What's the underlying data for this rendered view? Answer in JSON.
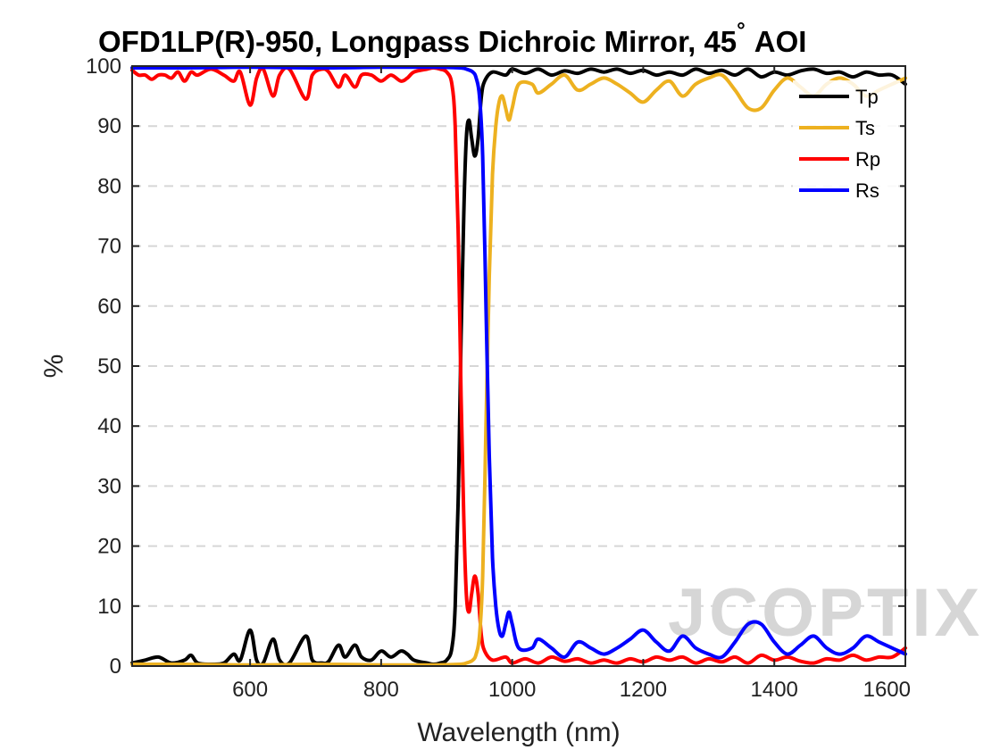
{
  "chart_data": {
    "type": "line",
    "title": "OFD1LP(R)-950, Longpass Dichroic Mirror, 45",
    "title_degree": "°",
    "title_suffix": "AOI",
    "xlabel": "Wavelength (nm)",
    "ylabel": "%",
    "xlim": [
      420,
      1600
    ],
    "ylim": [
      0,
      100
    ],
    "xticks": [
      600,
      800,
      1000,
      1200,
      1400,
      1600
    ],
    "yticks": [
      0,
      10,
      20,
      30,
      40,
      50,
      60,
      70,
      80,
      90,
      100
    ],
    "grid": "horizontal dashed",
    "legend_position": "top-right",
    "watermark": "JCOPTIX",
    "series": [
      {
        "name": "Tp",
        "color": "#000000",
        "points": [
          [
            420,
            0.5
          ],
          [
            440,
            1
          ],
          [
            460,
            1.5
          ],
          [
            480,
            0.5
          ],
          [
            500,
            1
          ],
          [
            510,
            1.8
          ],
          [
            520,
            0.5
          ],
          [
            540,
            0.3
          ],
          [
            560,
            0.5
          ],
          [
            575,
            2
          ],
          [
            585,
            1
          ],
          [
            600,
            6
          ],
          [
            610,
            1
          ],
          [
            620,
            0.5
          ],
          [
            635,
            4.5
          ],
          [
            645,
            1
          ],
          [
            660,
            0.5
          ],
          [
            685,
            5
          ],
          [
            695,
            1
          ],
          [
            710,
            0.5
          ],
          [
            720,
            0.8
          ],
          [
            735,
            3.5
          ],
          [
            745,
            1.5
          ],
          [
            760,
            3.5
          ],
          [
            770,
            1.5
          ],
          [
            785,
            1
          ],
          [
            800,
            2.5
          ],
          [
            815,
            1.5
          ],
          [
            830,
            2.5
          ],
          [
            840,
            2
          ],
          [
            850,
            1
          ],
          [
            870,
            0.5
          ],
          [
            880,
            0.3
          ],
          [
            890,
            0.5
          ],
          [
            900,
            1
          ],
          [
            908,
            3
          ],
          [
            913,
            10
          ],
          [
            918,
            30
          ],
          [
            922,
            55
          ],
          [
            926,
            75
          ],
          [
            930,
            88
          ],
          [
            934,
            91
          ],
          [
            938,
            88
          ],
          [
            943,
            85
          ],
          [
            948,
            88
          ],
          [
            953,
            95
          ],
          [
            958,
            97.5
          ],
          [
            970,
            99
          ],
          [
            990,
            98.5
          ],
          [
            1000,
            99.5
          ],
          [
            1020,
            98.8
          ],
          [
            1040,
            99.5
          ],
          [
            1060,
            98.5
          ],
          [
            1080,
            99.2
          ],
          [
            1100,
            98.8
          ],
          [
            1120,
            99.5
          ],
          [
            1140,
            99
          ],
          [
            1160,
            99.5
          ],
          [
            1180,
            98.8
          ],
          [
            1200,
            99.3
          ],
          [
            1220,
            98.5
          ],
          [
            1240,
            99
          ],
          [
            1260,
            98.5
          ],
          [
            1280,
            99.5
          ],
          [
            1300,
            98.8
          ],
          [
            1320,
            99.3
          ],
          [
            1340,
            98.5
          ],
          [
            1360,
            99.5
          ],
          [
            1380,
            98.2
          ],
          [
            1400,
            99
          ],
          [
            1420,
            98.5
          ],
          [
            1440,
            99.2
          ],
          [
            1460,
            99.5
          ],
          [
            1480,
            98.8
          ],
          [
            1500,
            99
          ],
          [
            1520,
            98.2
          ],
          [
            1540,
            99
          ],
          [
            1560,
            98.5
          ],
          [
            1580,
            98.5
          ],
          [
            1600,
            97
          ]
        ]
      },
      {
        "name": "Ts",
        "color": "#EDB120",
        "points": [
          [
            420,
            0.3
          ],
          [
            500,
            0.3
          ],
          [
            600,
            0.2
          ],
          [
            700,
            0.3
          ],
          [
            800,
            0.2
          ],
          [
            880,
            0.2
          ],
          [
            920,
            0.3
          ],
          [
            930,
            0.5
          ],
          [
            940,
            1
          ],
          [
            945,
            2
          ],
          [
            950,
            5
          ],
          [
            955,
            15
          ],
          [
            960,
            40
          ],
          [
            965,
            65
          ],
          [
            970,
            82
          ],
          [
            975,
            90
          ],
          [
            980,
            94
          ],
          [
            985,
            95
          ],
          [
            990,
            93
          ],
          [
            995,
            91
          ],
          [
            1000,
            93
          ],
          [
            1010,
            97
          ],
          [
            1030,
            97
          ],
          [
            1040,
            95.5
          ],
          [
            1060,
            97
          ],
          [
            1080,
            98.5
          ],
          [
            1100,
            96
          ],
          [
            1120,
            97
          ],
          [
            1140,
            98
          ],
          [
            1160,
            97
          ],
          [
            1180,
            95.5
          ],
          [
            1200,
            94
          ],
          [
            1220,
            96
          ],
          [
            1240,
            97.5
          ],
          [
            1260,
            95
          ],
          [
            1280,
            97
          ],
          [
            1300,
            98
          ],
          [
            1320,
            98.5
          ],
          [
            1340,
            96
          ],
          [
            1360,
            93
          ],
          [
            1380,
            93
          ],
          [
            1400,
            96
          ],
          [
            1420,
            98
          ],
          [
            1440,
            96.5
          ],
          [
            1460,
            95
          ],
          [
            1480,
            97
          ],
          [
            1500,
            98
          ],
          [
            1520,
            97
          ],
          [
            1540,
            95
          ],
          [
            1560,
            96
          ],
          [
            1580,
            97
          ],
          [
            1600,
            98
          ]
        ]
      },
      {
        "name": "Rp",
        "color": "#FF0000",
        "points": [
          [
            420,
            99.3
          ],
          [
            430,
            98.5
          ],
          [
            440,
            98.5
          ],
          [
            450,
            97.8
          ],
          [
            460,
            98.5
          ],
          [
            470,
            98.5
          ],
          [
            480,
            98
          ],
          [
            490,
            99
          ],
          [
            500,
            97.5
          ],
          [
            510,
            99
          ],
          [
            520,
            98.5
          ],
          [
            540,
            99.5
          ],
          [
            560,
            98.5
          ],
          [
            575,
            97.5
          ],
          [
            585,
            99
          ],
          [
            600,
            93.5
          ],
          [
            610,
            98
          ],
          [
            620,
            99.5
          ],
          [
            635,
            95
          ],
          [
            645,
            98.5
          ],
          [
            660,
            99.5
          ],
          [
            685,
            94.5
          ],
          [
            695,
            98.5
          ],
          [
            710,
            99.5
          ],
          [
            720,
            99
          ],
          [
            735,
            96.5
          ],
          [
            745,
            98.5
          ],
          [
            760,
            96.5
          ],
          [
            770,
            98.5
          ],
          [
            785,
            98.5
          ],
          [
            800,
            97.5
          ],
          [
            815,
            98.5
          ],
          [
            830,
            97.5
          ],
          [
            840,
            98
          ],
          [
            850,
            99
          ],
          [
            870,
            99.5
          ],
          [
            880,
            99.7
          ],
          [
            890,
            99.5
          ],
          [
            900,
            99
          ],
          [
            908,
            97
          ],
          [
            913,
            90
          ],
          [
            918,
            70
          ],
          [
            922,
            45
          ],
          [
            926,
            25
          ],
          [
            930,
            12
          ],
          [
            934,
            9
          ],
          [
            938,
            12
          ],
          [
            943,
            15
          ],
          [
            948,
            12
          ],
          [
            953,
            5
          ],
          [
            958,
            2.5
          ],
          [
            970,
            1
          ],
          [
            990,
            1.5
          ],
          [
            1000,
            0.5
          ],
          [
            1020,
            1.2
          ],
          [
            1040,
            0.5
          ],
          [
            1060,
            1.5
          ],
          [
            1080,
            0.8
          ],
          [
            1100,
            1.2
          ],
          [
            1120,
            0.5
          ],
          [
            1140,
            1
          ],
          [
            1160,
            0.5
          ],
          [
            1180,
            1.2
          ],
          [
            1200,
            0.7
          ],
          [
            1220,
            1.5
          ],
          [
            1240,
            1
          ],
          [
            1260,
            1.5
          ],
          [
            1280,
            0.5
          ],
          [
            1300,
            1.2
          ],
          [
            1320,
            0.7
          ],
          [
            1340,
            1.5
          ],
          [
            1360,
            0.5
          ],
          [
            1380,
            1.8
          ],
          [
            1400,
            1
          ],
          [
            1420,
            1.5
          ],
          [
            1440,
            0.8
          ],
          [
            1460,
            0.5
          ],
          [
            1480,
            1.2
          ],
          [
            1500,
            1
          ],
          [
            1520,
            1.8
          ],
          [
            1540,
            1
          ],
          [
            1560,
            1.5
          ],
          [
            1580,
            1.5
          ],
          [
            1600,
            3
          ]
        ]
      },
      {
        "name": "Rs",
        "color": "#0000FF",
        "points": [
          [
            420,
            99.7
          ],
          [
            500,
            99.7
          ],
          [
            600,
            99.8
          ],
          [
            700,
            99.7
          ],
          [
            800,
            99.8
          ],
          [
            880,
            99.8
          ],
          [
            920,
            99.7
          ],
          [
            930,
            99.5
          ],
          [
            940,
            99
          ],
          [
            945,
            98
          ],
          [
            950,
            95
          ],
          [
            955,
            85
          ],
          [
            960,
            60
          ],
          [
            965,
            35
          ],
          [
            970,
            18
          ],
          [
            975,
            10
          ],
          [
            980,
            6
          ],
          [
            985,
            5
          ],
          [
            990,
            7
          ],
          [
            995,
            9
          ],
          [
            1000,
            7
          ],
          [
            1010,
            3
          ],
          [
            1030,
            3
          ],
          [
            1040,
            4.5
          ],
          [
            1060,
            3
          ],
          [
            1080,
            1.5
          ],
          [
            1100,
            4
          ],
          [
            1120,
            3
          ],
          [
            1140,
            2
          ],
          [
            1160,
            3
          ],
          [
            1180,
            4.5
          ],
          [
            1200,
            6
          ],
          [
            1220,
            4
          ],
          [
            1240,
            2.5
          ],
          [
            1260,
            5
          ],
          [
            1280,
            3
          ],
          [
            1300,
            2
          ],
          [
            1320,
            1.5
          ],
          [
            1340,
            4
          ],
          [
            1360,
            7
          ],
          [
            1380,
            7
          ],
          [
            1400,
            4
          ],
          [
            1420,
            2
          ],
          [
            1440,
            3.5
          ],
          [
            1460,
            5
          ],
          [
            1480,
            3
          ],
          [
            1500,
            2
          ],
          [
            1520,
            3
          ],
          [
            1540,
            5
          ],
          [
            1560,
            4
          ],
          [
            1580,
            3
          ],
          [
            1600,
            2
          ]
        ]
      }
    ]
  }
}
